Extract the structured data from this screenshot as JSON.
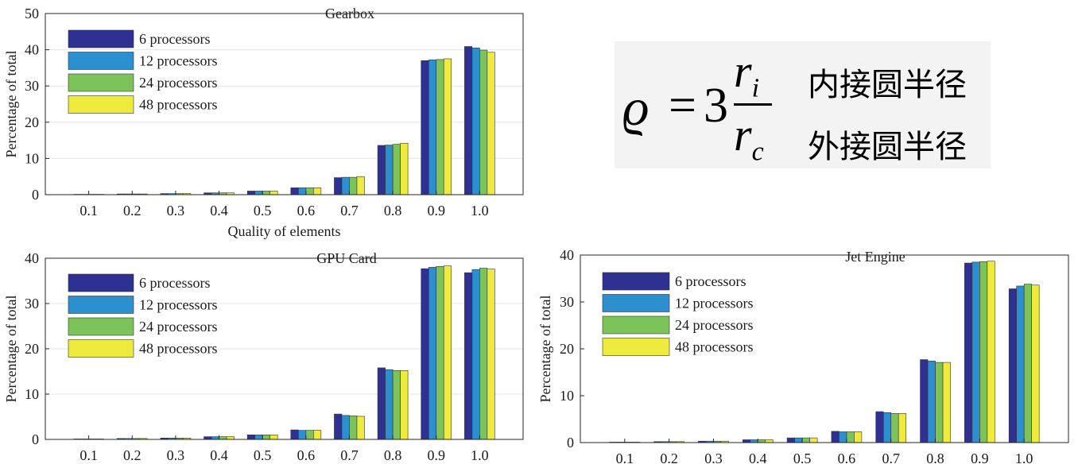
{
  "formula": {
    "symbol": "ϱ",
    "equals": "=",
    "coefficient": "3",
    "numerator": "r",
    "numerator_sub": "i",
    "denominator": "r",
    "denominator_sub": "c",
    "numerator_label": "内接圆半径",
    "denominator_label": "外接圆半径"
  },
  "chart_data": [
    {
      "type": "bar",
      "title": "Gearbox",
      "xlabel": "Quality of elements",
      "ylabel": "Percentage of total",
      "categories": [
        "0.1",
        "0.2",
        "0.3",
        "0.4",
        "0.5",
        "0.6",
        "0.7",
        "0.8",
        "0.9",
        "1.0"
      ],
      "ylim": [
        0,
        50
      ],
      "yticks": [
        0,
        10,
        20,
        30,
        40,
        50
      ],
      "legend_position": "top-left",
      "grid": "horizontal",
      "series": [
        {
          "name": "6 processors",
          "color": "#2e3192",
          "values": [
            0.1,
            0.2,
            0.3,
            0.5,
            1.0,
            1.9,
            4.7,
            13.6,
            37.0,
            40.9
          ]
        },
        {
          "name": "12 processors",
          "color": "#2b8fd0",
          "values": [
            0.1,
            0.2,
            0.3,
            0.5,
            1.0,
            1.9,
            4.8,
            13.7,
            37.2,
            40.5
          ]
        },
        {
          "name": "24 processors",
          "color": "#7cc35a",
          "values": [
            0.1,
            0.2,
            0.3,
            0.5,
            1.0,
            1.9,
            4.8,
            13.9,
            37.3,
            39.9
          ]
        },
        {
          "name": "48 processors",
          "color": "#eeea3e",
          "values": [
            0.1,
            0.2,
            0.3,
            0.5,
            1.0,
            1.9,
            5.0,
            14.2,
            37.5,
            39.3
          ]
        }
      ]
    },
    {
      "type": "bar",
      "title": "GPU Card",
      "xlabel": "",
      "ylabel": "Percentage of total",
      "categories": [
        "0.1",
        "0.2",
        "0.3",
        "0.4",
        "0.5",
        "0.6",
        "0.7",
        "0.8",
        "0.9",
        "1.0"
      ],
      "ylim": [
        0,
        40
      ],
      "yticks": [
        0,
        10,
        20,
        30,
        40
      ],
      "legend_position": "top-left",
      "grid": "horizontal",
      "series": [
        {
          "name": "6 processors",
          "color": "#2e3192",
          "values": [
            0.1,
            0.2,
            0.3,
            0.6,
            1.0,
            2.1,
            5.6,
            15.8,
            37.7,
            36.8
          ]
        },
        {
          "name": "12 processors",
          "color": "#2b8fd0",
          "values": [
            0.1,
            0.2,
            0.3,
            0.6,
            1.0,
            2.0,
            5.3,
            15.4,
            38.0,
            37.5
          ]
        },
        {
          "name": "24 processors",
          "color": "#7cc35a",
          "values": [
            0.1,
            0.2,
            0.3,
            0.6,
            1.0,
            2.0,
            5.2,
            15.2,
            38.2,
            37.8
          ]
        },
        {
          "name": "48 processors",
          "color": "#eeea3e",
          "values": [
            0.1,
            0.2,
            0.3,
            0.6,
            1.0,
            2.0,
            5.1,
            15.2,
            38.3,
            37.6
          ]
        }
      ]
    },
    {
      "type": "bar",
      "title": "Jet Engine",
      "xlabel": "",
      "ylabel": "Percentage of total",
      "categories": [
        "0.1",
        "0.2",
        "0.3",
        "0.4",
        "0.5",
        "0.6",
        "0.7",
        "0.8",
        "0.9",
        "1.0"
      ],
      "ylim": [
        0,
        40
      ],
      "yticks": [
        0,
        10,
        20,
        30,
        40
      ],
      "legend_position": "top-left",
      "grid": "none",
      "series": [
        {
          "name": "6 processors",
          "color": "#2e3192",
          "values": [
            0.1,
            0.2,
            0.3,
            0.6,
            1.0,
            2.4,
            6.6,
            17.7,
            38.3,
            32.8
          ]
        },
        {
          "name": "12 processors",
          "color": "#2b8fd0",
          "values": [
            0.1,
            0.2,
            0.3,
            0.6,
            1.0,
            2.3,
            6.4,
            17.4,
            38.5,
            33.4
          ]
        },
        {
          "name": "24 processors",
          "color": "#7cc35a",
          "values": [
            0.1,
            0.2,
            0.3,
            0.6,
            1.0,
            2.3,
            6.2,
            17.1,
            38.6,
            33.8
          ]
        },
        {
          "name": "48 processors",
          "color": "#eeea3e",
          "values": [
            0.1,
            0.2,
            0.3,
            0.6,
            1.0,
            2.3,
            6.2,
            17.1,
            38.7,
            33.6
          ]
        }
      ]
    }
  ]
}
